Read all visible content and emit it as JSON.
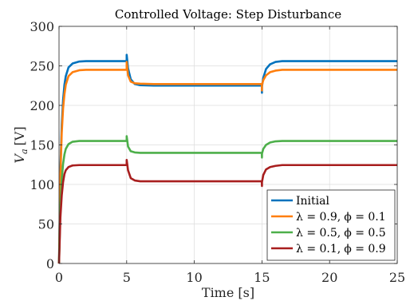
{
  "chart_data": {
    "type": "line",
    "title": "Controlled Voltage: Step Disturbance",
    "xlabel": "Time [s]",
    "ylabel": "V_a [V]",
    "ylabel_main": "V",
    "ylabel_sub": "a",
    "ylabel_unit": "[V]",
    "xlim": [
      0,
      25
    ],
    "ylim": [
      0,
      300
    ],
    "xticks": [
      0,
      5,
      10,
      15,
      20,
      25
    ],
    "yticks": [
      0,
      50,
      100,
      150,
      200,
      250,
      300
    ],
    "grid": true,
    "legend_position": "bottom-right",
    "series": [
      {
        "name": "Initial",
        "color": "#0072BD",
        "x": [
          0,
          0.1,
          0.2,
          0.3,
          0.4,
          0.5,
          0.7,
          1.0,
          1.5,
          2.0,
          3.0,
          5.0,
          5.001,
          5.1,
          5.3,
          5.6,
          6.0,
          7.0,
          10.0,
          14.99,
          15.0,
          15.001,
          15.1,
          15.3,
          15.6,
          16.0,
          16.5,
          17.0,
          20.0,
          25.0
        ],
        "y": [
          0,
          118,
          175,
          207,
          226,
          237,
          248,
          253,
          255.5,
          256,
          256,
          256,
          264,
          247,
          233,
          227,
          225.5,
          225,
          225,
          225,
          216,
          224,
          235,
          246,
          252,
          255,
          256,
          256,
          256,
          256
        ]
      },
      {
        "name": "λ = 0.9,ϕ = 0.1",
        "name_lambda": "λ = 0.9,",
        "name_phi": "ϕ = 0.1",
        "color": "#FF7F0E",
        "x": [
          0,
          0.1,
          0.2,
          0.3,
          0.4,
          0.5,
          0.7,
          1.0,
          1.5,
          2.0,
          3.0,
          5.0,
          5.001,
          5.1,
          5.3,
          5.6,
          6.0,
          7.0,
          10.0,
          14.99,
          15.0,
          15.001,
          15.1,
          15.3,
          15.6,
          16.0,
          16.5,
          17.0,
          20.0,
          25.0
        ],
        "y": [
          0,
          110,
          165,
          196,
          214,
          226,
          237,
          242,
          244.5,
          245,
          245,
          245,
          255,
          238,
          230,
          228,
          227.5,
          227,
          227,
          227,
          219,
          226,
          232,
          238,
          242,
          244,
          245,
          245,
          245,
          245
        ]
      },
      {
        "name": "λ = 0.5,ϕ = 0.5",
        "name_lambda": "λ = 0.5,",
        "name_phi": "ϕ = 0.5",
        "color": "#4DAF4A",
        "x": [
          0,
          0.1,
          0.2,
          0.3,
          0.4,
          0.5,
          0.7,
          1.0,
          1.5,
          2.0,
          3.0,
          5.0,
          5.001,
          5.1,
          5.3,
          5.6,
          6.0,
          7.0,
          10.0,
          14.99,
          15.0,
          15.001,
          15.1,
          15.3,
          15.6,
          16.0,
          16.5,
          17.0,
          20.0,
          25.0
        ],
        "y": [
          0,
          72,
          106,
          126,
          138,
          145,
          151,
          154,
          155,
          155,
          155,
          155,
          161,
          148,
          142,
          140.5,
          140,
          140,
          140,
          140,
          134,
          139,
          145,
          150,
          153,
          154.5,
          155,
          155,
          155,
          155
        ]
      },
      {
        "name": "λ = 0.1,ϕ = 0.9",
        "name_lambda": "λ = 0.1,",
        "name_phi": "ϕ = 0.9",
        "color": "#A81E1E",
        "x": [
          0,
          0.1,
          0.2,
          0.3,
          0.4,
          0.5,
          0.7,
          1.0,
          1.5,
          2.0,
          3.0,
          5.0,
          5.001,
          5.1,
          5.3,
          5.6,
          6.0,
          7.0,
          10.0,
          14.99,
          15.0,
          15.001,
          15.1,
          15.3,
          15.6,
          16.0,
          16.5,
          17.0,
          20.0,
          25.0
        ],
        "y": [
          0,
          58,
          86,
          103,
          113,
          118,
          122,
          124,
          124.5,
          124.5,
          124.5,
          124.5,
          131,
          118,
          108,
          105,
          104,
          104,
          104,
          104,
          98,
          103,
          112,
          119,
          122,
          123.5,
          124.5,
          124.5,
          124.5,
          124.5
        ]
      }
    ]
  }
}
